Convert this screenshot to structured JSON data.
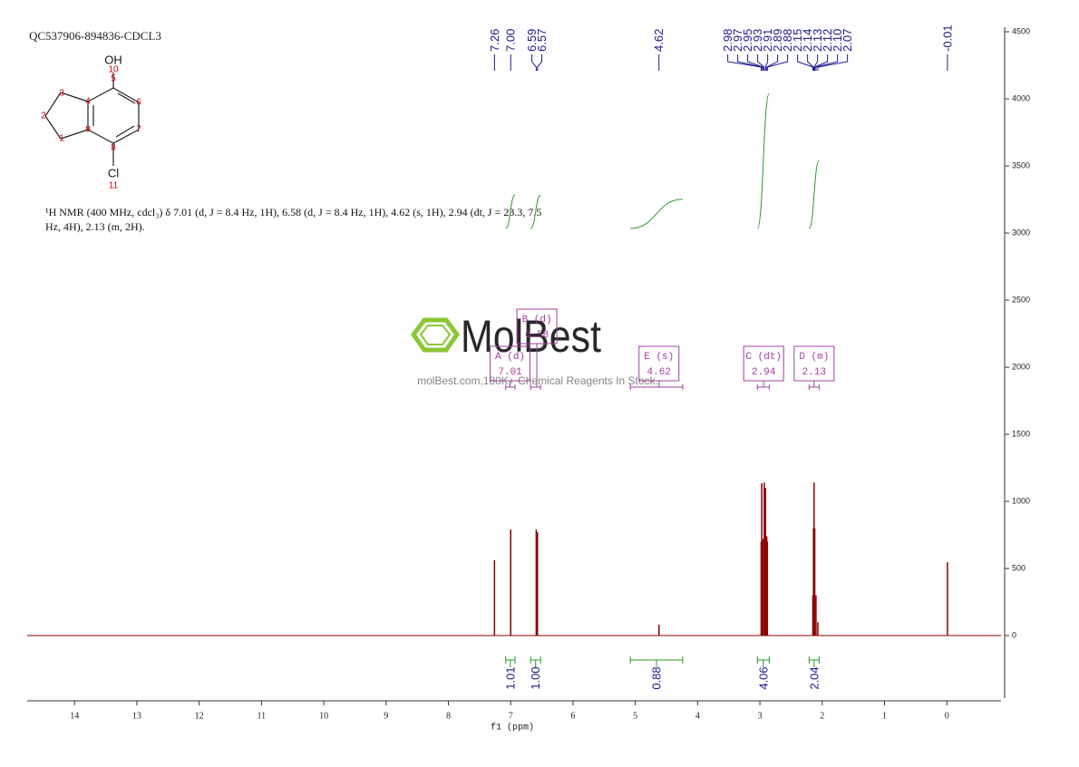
{
  "chart_data": {
    "type": "nmr",
    "title": "QC537906-894836-CDCL3",
    "x_label": "f1 (ppm)",
    "xlim": [
      14.76,
      -0.87
    ],
    "xticks": [
      14,
      13,
      12,
      11,
      10,
      9,
      8,
      7,
      6,
      5,
      4,
      3,
      2,
      1,
      0
    ],
    "ylim": [
      -466,
      4534
    ],
    "yticks": [
      0,
      500,
      1000,
      1500,
      2000,
      2500,
      3000,
      3500,
      4000,
      4500
    ],
    "color": "#8b0000",
    "peaks": {
      "x": [
        7.26,
        7.0,
        6.59,
        6.57,
        4.62,
        2.98,
        2.97,
        2.95,
        2.93,
        2.91,
        2.89,
        2.88,
        2.15,
        2.14,
        2.13,
        2.12,
        2.1,
        2.07,
        -0.01
      ],
      "x_labels": [
        "7.26",
        "7.00",
        "6.59",
        "6.57",
        "4.62",
        "2.98",
        "2.97",
        "2.95",
        "2.93",
        "2.91",
        "2.89",
        "2.88",
        "2.15",
        "2.14",
        "2.13",
        "2.12",
        "2.10",
        "2.07",
        "-0.01"
      ],
      "values": [
        561,
        790,
        790,
        770,
        80,
        700,
        1135,
        720,
        1140,
        1100,
        740,
        700,
        300,
        800,
        1140,
        800,
        300,
        100,
        547
      ]
    },
    "integrals": [
      {
        "range": [
          7.08,
          6.93
        ],
        "value": 1.01
      },
      {
        "range": [
          6.68,
          6.52
        ],
        "value": 1.0,
        "value_label": "1.00"
      },
      {
        "range": [
          5.08,
          4.24
        ],
        "value": 0.88
      },
      {
        "range": [
          3.04,
          2.85
        ],
        "value": 4.06
      },
      {
        "range": [
          2.21,
          2.05
        ],
        "value": 2.04
      }
    ],
    "multiplets": [
      {
        "label": "A (d)",
        "shift": 7.01
      },
      {
        "label": "B (d)",
        "shift": 6.58
      },
      {
        "label": "E (s)",
        "shift": 4.62
      },
      {
        "label": "C (dt)",
        "shift": 2.94
      },
      {
        "label": "D (m)",
        "shift": 2.13
      }
    ],
    "description": "¹H NMR (400 MHz, cdcl₃) δ 7.01 (d, J = 8.4 Hz, 1H), 6.58 (d, J = 8.4 Hz, 1H), 4.62 (s, 1H), 2.94 (dt, J = 23.3, 7.5 Hz, 4H), 2.13 (m, 2H).",
    "structure": {
      "atoms": [
        "OH",
        "10",
        "3",
        "5",
        "4",
        "6",
        "2",
        "9",
        "7",
        "1",
        "8",
        "Cl",
        "11"
      ]
    },
    "watermark": {
      "logo": "MolBest",
      "text": "molBest.com,180K+ Chemical Reagents In Stock."
    }
  }
}
